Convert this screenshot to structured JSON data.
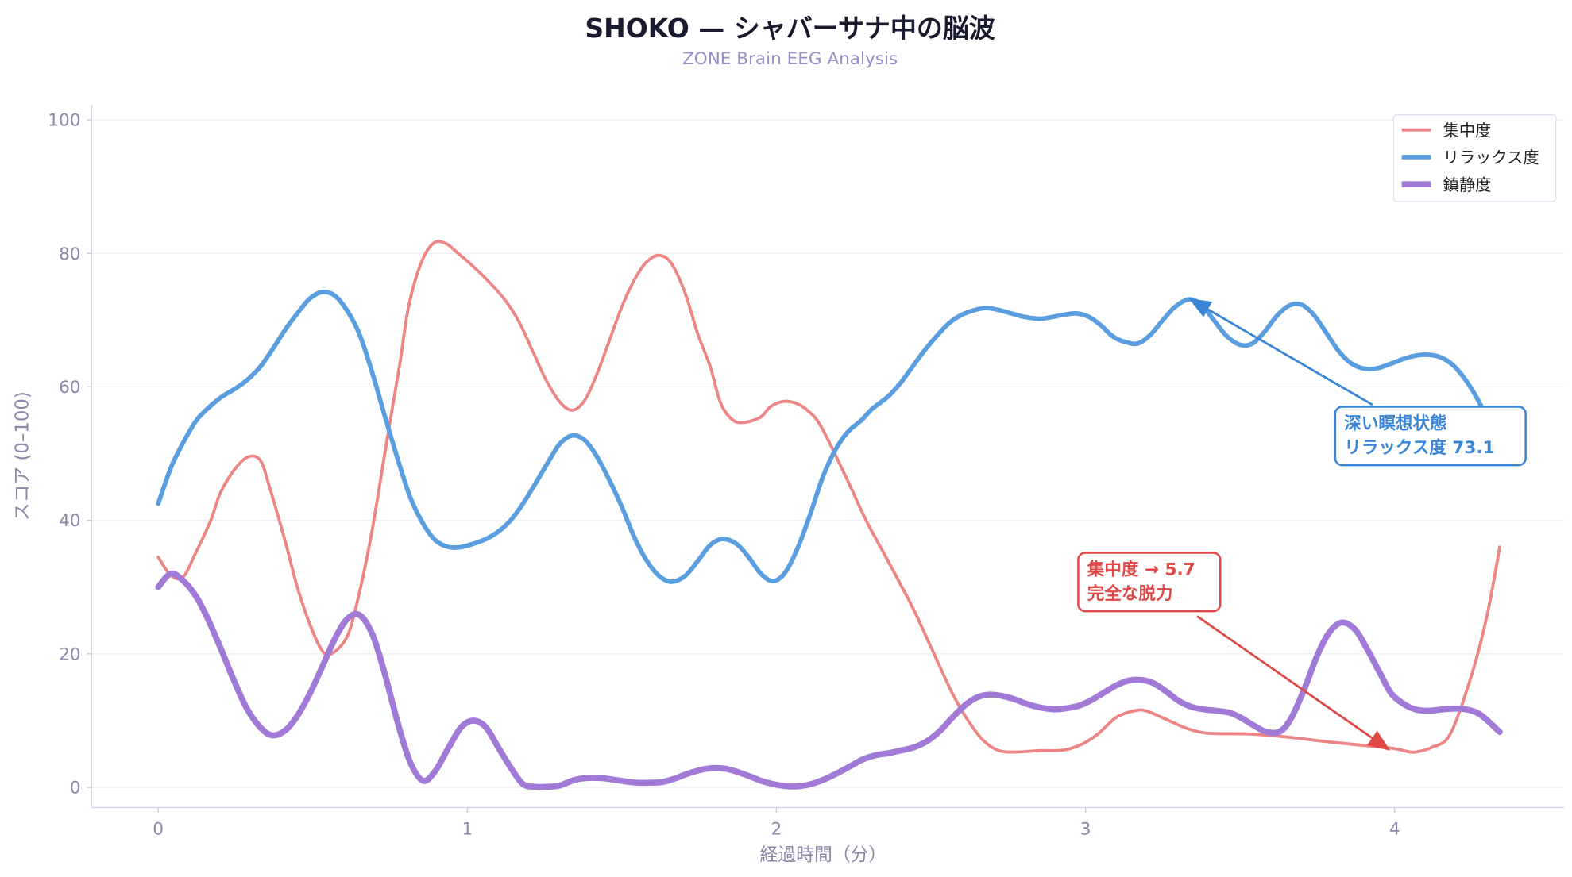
{
  "chart_data": {
    "type": "line",
    "title": "SHOKO — シャバーサナ中の脳波",
    "subtitle": "ZONE Brain EEG Analysis",
    "xlabel": "経過時間（分）",
    "ylabel": "スコア (0–100)",
    "xlim": [
      -0.22,
      4.55
    ],
    "ylim": [
      -3,
      102
    ],
    "xticks": [
      "0",
      "1",
      "2",
      "3",
      "4"
    ],
    "yticks": [
      "0",
      "20",
      "40",
      "60",
      "80",
      "100"
    ],
    "grid": true,
    "legend_position": "top-right",
    "series": [
      {
        "name": "集中度",
        "color": "#ee8585",
        "width": 3,
        "points": [
          [
            0,
            34.5
          ],
          [
            0.04,
            31.8
          ],
          [
            0.08,
            31.5
          ],
          [
            0.12,
            35
          ],
          [
            0.17,
            40
          ],
          [
            0.2,
            44
          ],
          [
            0.245,
            47.5
          ],
          [
            0.29,
            49.5
          ],
          [
            0.33,
            49
          ],
          [
            0.36,
            45
          ],
          [
            0.41,
            37
          ],
          [
            0.45,
            30
          ],
          [
            0.49,
            24.5
          ],
          [
            0.53,
            20.5
          ],
          [
            0.56,
            20
          ],
          [
            0.61,
            22.5
          ],
          [
            0.645,
            28
          ],
          [
            0.69,
            38
          ],
          [
            0.74,
            52
          ],
          [
            0.78,
            63
          ],
          [
            0.81,
            72
          ],
          [
            0.85,
            78.5
          ],
          [
            0.89,
            81.5
          ],
          [
            0.93,
            81.5
          ],
          [
            0.97,
            80
          ],
          [
            1.02,
            78
          ],
          [
            1.085,
            75
          ],
          [
            1.13,
            72.5
          ],
          [
            1.17,
            69.5
          ],
          [
            1.215,
            65
          ],
          [
            1.255,
            61
          ],
          [
            1.3,
            57.7
          ],
          [
            1.34,
            56.5
          ],
          [
            1.38,
            58
          ],
          [
            1.42,
            62
          ],
          [
            1.46,
            67
          ],
          [
            1.5,
            72
          ],
          [
            1.54,
            76
          ],
          [
            1.58,
            78.7
          ],
          [
            1.62,
            79.7
          ],
          [
            1.66,
            78.5
          ],
          [
            1.705,
            74
          ],
          [
            1.745,
            68
          ],
          [
            1.786,
            63
          ],
          [
            1.82,
            57.5
          ],
          [
            1.86,
            55
          ],
          [
            1.9,
            54.7
          ],
          [
            1.95,
            55.5
          ],
          [
            1.98,
            57
          ],
          [
            2.02,
            57.8
          ],
          [
            2.06,
            57.6
          ],
          [
            2.1,
            56.5
          ],
          [
            2.145,
            54
          ],
          [
            2.23,
            46
          ],
          [
            2.29,
            40
          ],
          [
            2.36,
            34
          ],
          [
            2.44,
            27
          ],
          [
            2.5,
            21
          ],
          [
            2.57,
            14
          ],
          [
            2.62,
            10
          ],
          [
            2.67,
            7
          ],
          [
            2.72,
            5.5
          ],
          [
            2.78,
            5.3
          ],
          [
            2.85,
            5.5
          ],
          [
            2.93,
            5.6
          ],
          [
            2.99,
            6.5
          ],
          [
            3.04,
            8
          ],
          [
            3.1,
            10.5
          ],
          [
            3.16,
            11.5
          ],
          [
            3.2,
            11.4
          ],
          [
            3.27,
            10
          ],
          [
            3.33,
            8.8
          ],
          [
            3.4,
            8.1
          ],
          [
            3.53,
            8
          ],
          [
            3.66,
            7.5
          ],
          [
            3.79,
            6.8
          ],
          [
            3.92,
            6.2
          ],
          [
            4.0,
            5.8
          ],
          [
            4.05,
            5.3
          ],
          [
            4.08,
            5.4
          ],
          [
            4.12,
            6
          ],
          [
            4.18,
            8
          ],
          [
            4.25,
            17
          ],
          [
            4.3,
            26
          ],
          [
            4.34,
            36
          ]
        ]
      },
      {
        "name": "リラックス度",
        "color": "#5b9ee0",
        "width": 4.5,
        "points": [
          [
            0,
            42.5
          ],
          [
            0.042,
            48
          ],
          [
            0.085,
            52
          ],
          [
            0.124,
            55
          ],
          [
            0.166,
            57
          ],
          [
            0.205,
            58.5
          ],
          [
            0.248,
            59.7
          ],
          [
            0.287,
            61
          ],
          [
            0.33,
            63
          ],
          [
            0.368,
            65.5
          ],
          [
            0.41,
            68.5
          ],
          [
            0.45,
            71
          ],
          [
            0.49,
            73.2
          ],
          [
            0.53,
            74.2
          ],
          [
            0.57,
            73.7
          ],
          [
            0.61,
            71.5
          ],
          [
            0.65,
            68
          ],
          [
            0.69,
            62.5
          ],
          [
            0.737,
            55
          ],
          [
            0.776,
            49
          ],
          [
            0.815,
            43.5
          ],
          [
            0.857,
            39.5
          ],
          [
            0.897,
            37
          ],
          [
            0.94,
            36
          ],
          [
            0.98,
            36
          ],
          [
            1.02,
            36.5
          ],
          [
            1.06,
            37.2
          ],
          [
            1.1,
            38.3
          ],
          [
            1.14,
            40
          ],
          [
            1.18,
            42.5
          ],
          [
            1.22,
            45.5
          ],
          [
            1.265,
            49
          ],
          [
            1.3,
            51.5
          ],
          [
            1.34,
            52.7
          ],
          [
            1.38,
            52
          ],
          [
            1.42,
            49.5
          ],
          [
            1.46,
            46
          ],
          [
            1.5,
            42
          ],
          [
            1.54,
            37.5
          ],
          [
            1.58,
            34
          ],
          [
            1.62,
            31.7
          ],
          [
            1.66,
            30.8
          ],
          [
            1.705,
            31.7
          ],
          [
            1.747,
            34
          ],
          [
            1.786,
            36.3
          ],
          [
            1.825,
            37.2
          ],
          [
            1.87,
            36.5
          ],
          [
            1.91,
            34.5
          ],
          [
            1.95,
            32
          ],
          [
            1.99,
            30.9
          ],
          [
            2.03,
            32.3
          ],
          [
            2.07,
            36
          ],
          [
            2.11,
            41
          ],
          [
            2.15,
            46.5
          ],
          [
            2.19,
            50.5
          ],
          [
            2.23,
            53.2
          ],
          [
            2.275,
            55
          ],
          [
            2.31,
            56.7
          ],
          [
            2.36,
            58.5
          ],
          [
            2.4,
            60.5
          ],
          [
            2.44,
            63
          ],
          [
            2.48,
            65.5
          ],
          [
            2.52,
            67.7
          ],
          [
            2.56,
            69.6
          ],
          [
            2.6,
            70.8
          ],
          [
            2.64,
            71.5
          ],
          [
            2.68,
            71.8
          ],
          [
            2.72,
            71.5
          ],
          [
            2.76,
            71
          ],
          [
            2.8,
            70.5
          ],
          [
            2.85,
            70.2
          ],
          [
            2.885,
            70.4
          ],
          [
            2.93,
            70.8
          ],
          [
            2.97,
            71
          ],
          [
            3.01,
            70.5
          ],
          [
            3.05,
            69.2
          ],
          [
            3.09,
            67.5
          ],
          [
            3.13,
            66.7
          ],
          [
            3.17,
            66.5
          ],
          [
            3.21,
            67.8
          ],
          [
            3.25,
            70
          ],
          [
            3.29,
            72
          ],
          [
            3.335,
            73.1
          ],
          [
            3.375,
            72.3
          ],
          [
            3.415,
            70
          ],
          [
            3.455,
            67.7
          ],
          [
            3.5,
            66.3
          ],
          [
            3.54,
            66.5
          ],
          [
            3.58,
            68.3
          ],
          [
            3.62,
            70.7
          ],
          [
            3.66,
            72.2
          ],
          [
            3.7,
            72.3
          ],
          [
            3.74,
            70.7
          ],
          [
            3.78,
            68
          ],
          [
            3.82,
            65.3
          ],
          [
            3.86,
            63.5
          ],
          [
            3.905,
            62.7
          ],
          [
            3.945,
            62.8
          ],
          [
            3.99,
            63.5
          ],
          [
            4.03,
            64.2
          ],
          [
            4.07,
            64.7
          ],
          [
            4.11,
            64.8
          ],
          [
            4.15,
            64.4
          ],
          [
            4.19,
            63.2
          ],
          [
            4.23,
            61
          ],
          [
            4.27,
            58
          ],
          [
            4.31,
            54
          ],
          [
            4.34,
            51
          ]
        ]
      },
      {
        "name": "鎮静度",
        "color": "#a07ad6",
        "width": 6,
        "points": [
          [
            0,
            30
          ],
          [
            0.04,
            32
          ],
          [
            0.08,
            31
          ],
          [
            0.124,
            28.5
          ],
          [
            0.163,
            25
          ],
          [
            0.205,
            20.5
          ],
          [
            0.245,
            16
          ],
          [
            0.287,
            11.8
          ],
          [
            0.33,
            9
          ],
          [
            0.368,
            7.8
          ],
          [
            0.41,
            8.5
          ],
          [
            0.45,
            10.7
          ],
          [
            0.49,
            14
          ],
          [
            0.53,
            18
          ],
          [
            0.574,
            22.5
          ],
          [
            0.613,
            25.3
          ],
          [
            0.652,
            25.8
          ],
          [
            0.694,
            22.8
          ],
          [
            0.733,
            17
          ],
          [
            0.776,
            9.5
          ],
          [
            0.815,
            3.8
          ],
          [
            0.857,
            1
          ],
          [
            0.897,
            2.5
          ],
          [
            0.94,
            6
          ],
          [
            0.98,
            9
          ],
          [
            1.02,
            10
          ],
          [
            1.06,
            9
          ],
          [
            1.1,
            6
          ],
          [
            1.14,
            3
          ],
          [
            1.18,
            0.5
          ],
          [
            1.22,
            0.1
          ],
          [
            1.265,
            0.1
          ],
          [
            1.3,
            0.3
          ],
          [
            1.346,
            1.1
          ],
          [
            1.385,
            1.4
          ],
          [
            1.43,
            1.4
          ],
          [
            1.467,
            1.2
          ],
          [
            1.51,
            0.9
          ],
          [
            1.55,
            0.7
          ],
          [
            1.59,
            0.7
          ],
          [
            1.63,
            0.8
          ],
          [
            1.67,
            1.3
          ],
          [
            1.71,
            2
          ],
          [
            1.754,
            2.6
          ],
          [
            1.793,
            2.9
          ],
          [
            1.835,
            2.8
          ],
          [
            1.875,
            2.3
          ],
          [
            1.917,
            1.6
          ],
          [
            1.956,
            0.9
          ],
          [
            2.0,
            0.4
          ],
          [
            2.04,
            0.15
          ],
          [
            2.08,
            0.2
          ],
          [
            2.12,
            0.6
          ],
          [
            2.16,
            1.3
          ],
          [
            2.2,
            2.2
          ],
          [
            2.24,
            3.2
          ],
          [
            2.28,
            4.2
          ],
          [
            2.32,
            4.8
          ],
          [
            2.36,
            5.1
          ],
          [
            2.4,
            5.5
          ],
          [
            2.445,
            6
          ],
          [
            2.49,
            7
          ],
          [
            2.53,
            8.5
          ],
          [
            2.57,
            10.5
          ],
          [
            2.61,
            12.3
          ],
          [
            2.65,
            13.5
          ],
          [
            2.69,
            13.9
          ],
          [
            2.73,
            13.7
          ],
          [
            2.77,
            13.2
          ],
          [
            2.81,
            12.5
          ],
          [
            2.85,
            12
          ],
          [
            2.895,
            11.7
          ],
          [
            2.93,
            11.8
          ],
          [
            2.976,
            12.2
          ],
          [
            3.016,
            13
          ],
          [
            3.06,
            14.2
          ],
          [
            3.1,
            15.3
          ],
          [
            3.14,
            16
          ],
          [
            3.18,
            16.1
          ],
          [
            3.22,
            15.6
          ],
          [
            3.26,
            14.4
          ],
          [
            3.3,
            13
          ],
          [
            3.34,
            12.1
          ],
          [
            3.38,
            11.7
          ],
          [
            3.42,
            11.5
          ],
          [
            3.465,
            11.2
          ],
          [
            3.5,
            10.5
          ],
          [
            3.547,
            9.2
          ],
          [
            3.586,
            8.3
          ],
          [
            3.63,
            8.4
          ],
          [
            3.667,
            10.5
          ],
          [
            3.71,
            15
          ],
          [
            3.75,
            19.8
          ],
          [
            3.79,
            23.3
          ],
          [
            3.83,
            24.7
          ],
          [
            3.873,
            23.6
          ],
          [
            3.91,
            20.8
          ],
          [
            3.954,
            17
          ],
          [
            3.99,
            14
          ],
          [
            4.036,
            12.3
          ],
          [
            4.075,
            11.6
          ],
          [
            4.117,
            11.5
          ],
          [
            4.157,
            11.7
          ],
          [
            4.2,
            11.8
          ],
          [
            4.24,
            11.6
          ],
          [
            4.28,
            10.8
          ],
          [
            4.34,
            8.3
          ]
        ]
      }
    ],
    "annotations": [
      {
        "lines": [
          "深い瞑想状態",
          "リラックス度 73.1"
        ],
        "target": [
          3.34,
          73.1
        ],
        "color": "#3a86d6"
      },
      {
        "lines": [
          "集中度 → 5.7",
          "完全な脱力"
        ],
        "target": [
          3.98,
          5.7
        ],
        "color": "#e04848"
      }
    ]
  }
}
